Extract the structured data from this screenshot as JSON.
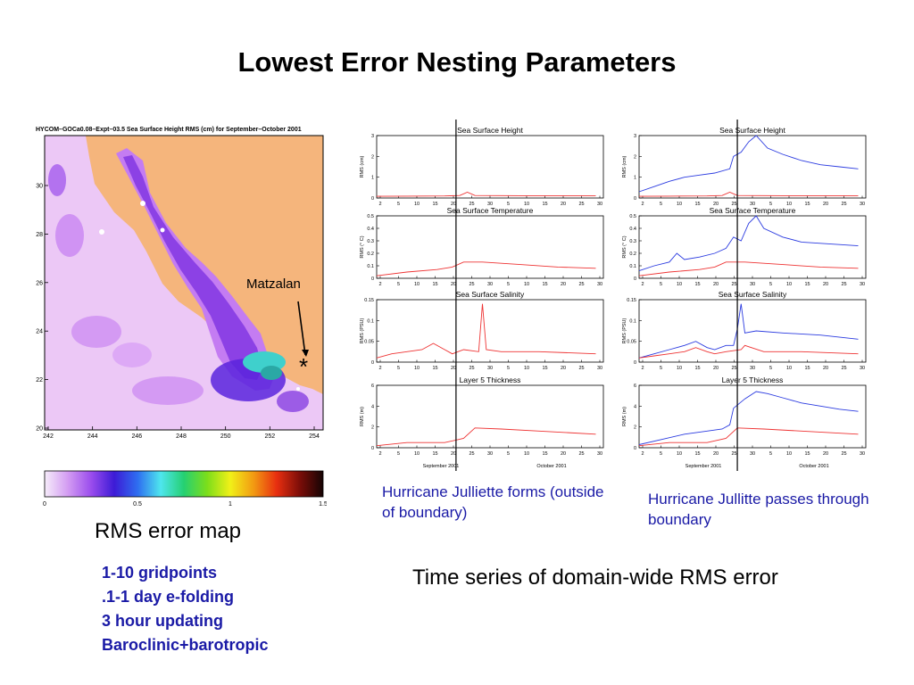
{
  "title": "Lowest Error Nesting Parameters",
  "map": {
    "header": "HYCOM–GOCa0.08–Expt–03.5   Sea Surface Height  RMS (cm)  for  September–October 2001",
    "location_label": "Matzalan",
    "marker": "*",
    "x_ticks": [
      "242",
      "244",
      "246",
      "248",
      "250",
      "252",
      "254"
    ],
    "y_ticks": [
      "30",
      "28",
      "26",
      "24",
      "22",
      "20"
    ],
    "colors": {
      "land": "#f5b57c",
      "ocean_low": "#ecc8f6",
      "ocean_mid": "#c47cf2",
      "ocean_high": "#7a2ee0",
      "ocean_peak": "#3fd0cc"
    }
  },
  "colorbar": {
    "ticks": [
      "0",
      "0.5",
      "1",
      "1.5"
    ],
    "colors": [
      "#f6ecfa",
      "#d39cf2",
      "#9b4ded",
      "#3d1bd6",
      "#2e6df0",
      "#4ee6ee",
      "#25d072",
      "#7cde1a",
      "#f1f018",
      "#f29a12",
      "#e82f10",
      "#7b0d08",
      "#150404"
    ]
  },
  "map_caption": "RMS error map",
  "bullets": [
    "1-10 gridpoints",
    ".1-1 day e-folding",
    "3 hour updating",
    "Baroclinic+barotropic"
  ],
  "left_caption": "Hurricane Julliette forms (outside of boundary)",
  "right_caption": "Hurricane Jullitte passes through boundary",
  "timeseries_caption": "Time series of domain-wide RMS error",
  "chart_data": [
    {
      "type": "line",
      "panels": [
        {
          "title": "Sea  Surface  Height",
          "ylabel": "RMS (cm)",
          "ylim": [
            0,
            3
          ],
          "yticks": [
            "0",
            "1",
            "2",
            "3"
          ]
        },
        {
          "title": "Sea  Surface  Temperature",
          "ylabel": "RMS (° C)",
          "ylim": [
            0,
            0.5
          ],
          "yticks": [
            "0",
            "0.1",
            "0.2",
            "0.3",
            "0.4",
            "0.5"
          ]
        },
        {
          "title": "Sea  Surface  Salinity",
          "ylabel": "RMS (PSU)",
          "ylim": [
            0,
            0.15
          ],
          "yticks": [
            "0",
            "0.05",
            "0.1",
            "0.15"
          ]
        },
        {
          "title": "Layer  5  Thickness",
          "ylabel": "RMS (m)",
          "ylim": [
            0,
            6
          ],
          "yticks": [
            "0",
            "2",
            "4",
            "6"
          ]
        }
      ],
      "x_tick_labels": [
        "2",
        "5",
        "10",
        "15",
        "20",
        "25",
        "30",
        "5",
        "10",
        "15",
        "20",
        "25",
        "30"
      ],
      "x_month_labels": [
        "September 2001",
        "October 2001"
      ],
      "marker_date": "Sep 23",
      "series": [
        {
          "color": "#ee3333",
          "panel_values": [
            [
              [
                2,
                0.08
              ],
              [
                10,
                0.09
              ],
              [
                20,
                0.1
              ],
              [
                24,
                0.12
              ],
              [
                26,
                0.28
              ],
              [
                28,
                0.12
              ],
              [
                40,
                0.11
              ],
              [
                60,
                0.11
              ]
            ],
            [
              [
                2,
                0.02
              ],
              [
                10,
                0.05
              ],
              [
                18,
                0.07
              ],
              [
                22,
                0.09
              ],
              [
                25,
                0.13
              ],
              [
                30,
                0.13
              ],
              [
                40,
                0.11
              ],
              [
                50,
                0.09
              ],
              [
                60,
                0.08
              ]
            ],
            [
              [
                2,
                0.01
              ],
              [
                6,
                0.02
              ],
              [
                10,
                0.025
              ],
              [
                14,
                0.03
              ],
              [
                17,
                0.045
              ],
              [
                20,
                0.03
              ],
              [
                22,
                0.02
              ],
              [
                25,
                0.03
              ],
              [
                29,
                0.025
              ],
              [
                30,
                0.14
              ],
              [
                31,
                0.03
              ],
              [
                35,
                0.025
              ],
              [
                45,
                0.025
              ],
              [
                60,
                0.02
              ]
            ],
            [
              [
                2,
                0.2
              ],
              [
                10,
                0.5
              ],
              [
                20,
                0.5
              ],
              [
                25,
                0.9
              ],
              [
                28,
                1.9
              ],
              [
                35,
                1.8
              ],
              [
                45,
                1.6
              ],
              [
                60,
                1.3
              ]
            ]
          ]
        }
      ]
    },
    {
      "type": "line",
      "panels": [
        {
          "title": "Sea  Surface  Height",
          "ylabel": "RMS (cm)",
          "ylim": [
            0,
            3
          ],
          "yticks": [
            "0",
            "1",
            "2",
            "3"
          ]
        },
        {
          "title": "Sea  Surface  Temperature",
          "ylabel": "RMS (° C)",
          "ylim": [
            0,
            0.5
          ],
          "yticks": [
            "0",
            "0.1",
            "0.2",
            "0.3",
            "0.4",
            "0.5"
          ]
        },
        {
          "title": "Sea  Surface  Salinity",
          "ylabel": "RMS (PSU)",
          "ylim": [
            0,
            0.15
          ],
          "yticks": [
            "0",
            "0.05",
            "0.1",
            "0.15"
          ]
        },
        {
          "title": "Layer  5  Thickness",
          "ylabel": "RMS (m)",
          "ylim": [
            0,
            6
          ],
          "yticks": [
            "0",
            "2",
            "4",
            "6"
          ]
        }
      ],
      "x_tick_labels": [
        "2",
        "5",
        "10",
        "15",
        "20",
        "25",
        "30",
        "5",
        "10",
        "15",
        "20",
        "25",
        "30"
      ],
      "x_month_labels": [
        "September 2001",
        "October 2001"
      ],
      "marker_date": "Sep 28",
      "series": [
        {
          "color": "#2b3be0",
          "panel_values": [
            [
              [
                2,
                0.3
              ],
              [
                6,
                0.55
              ],
              [
                10,
                0.8
              ],
              [
                14,
                1.0
              ],
              [
                18,
                1.1
              ],
              [
                22,
                1.2
              ],
              [
                26,
                1.4
              ],
              [
                27,
                2.0
              ],
              [
                29,
                2.2
              ],
              [
                31,
                2.7
              ],
              [
                33,
                3.0
              ],
              [
                36,
                2.4
              ],
              [
                40,
                2.1
              ],
              [
                45,
                1.8
              ],
              [
                50,
                1.6
              ],
              [
                55,
                1.5
              ],
              [
                60,
                1.4
              ]
            ],
            [
              [
                2,
                0.06
              ],
              [
                6,
                0.1
              ],
              [
                10,
                0.13
              ],
              [
                12,
                0.2
              ],
              [
                14,
                0.15
              ],
              [
                18,
                0.17
              ],
              [
                22,
                0.2
              ],
              [
                25,
                0.24
              ],
              [
                27,
                0.33
              ],
              [
                29,
                0.3
              ],
              [
                31,
                0.44
              ],
              [
                33,
                0.5
              ],
              [
                35,
                0.4
              ],
              [
                40,
                0.33
              ],
              [
                45,
                0.29
              ],
              [
                50,
                0.28
              ],
              [
                55,
                0.27
              ],
              [
                60,
                0.26
              ]
            ],
            [
              [
                2,
                0.01
              ],
              [
                6,
                0.02
              ],
              [
                10,
                0.03
              ],
              [
                14,
                0.04
              ],
              [
                17,
                0.05
              ],
              [
                20,
                0.035
              ],
              [
                22,
                0.03
              ],
              [
                25,
                0.04
              ],
              [
                27,
                0.04
              ],
              [
                28,
                0.08
              ],
              [
                29,
                0.14
              ],
              [
                30,
                0.07
              ],
              [
                33,
                0.075
              ],
              [
                40,
                0.07
              ],
              [
                50,
                0.065
              ],
              [
                60,
                0.055
              ]
            ],
            [
              [
                2,
                0.3
              ],
              [
                8,
                0.8
              ],
              [
                14,
                1.3
              ],
              [
                20,
                1.6
              ],
              [
                24,
                1.8
              ],
              [
                26,
                2.2
              ],
              [
                27,
                3.8
              ],
              [
                30,
                4.7
              ],
              [
                33,
                5.4
              ],
              [
                36,
                5.2
              ],
              [
                40,
                4.8
              ],
              [
                45,
                4.3
              ],
              [
                50,
                4.0
              ],
              [
                55,
                3.7
              ],
              [
                60,
                3.5
              ]
            ]
          ]
        },
        {
          "color": "#ee3333",
          "panel_values": [
            [
              [
                2,
                0.08
              ],
              [
                10,
                0.09
              ],
              [
                20,
                0.1
              ],
              [
                24,
                0.12
              ],
              [
                26,
                0.28
              ],
              [
                28,
                0.12
              ],
              [
                40,
                0.11
              ],
              [
                60,
                0.11
              ]
            ],
            [
              [
                2,
                0.02
              ],
              [
                10,
                0.05
              ],
              [
                18,
                0.07
              ],
              [
                22,
                0.09
              ],
              [
                25,
                0.13
              ],
              [
                30,
                0.13
              ],
              [
                40,
                0.11
              ],
              [
                50,
                0.09
              ],
              [
                60,
                0.08
              ]
            ],
            [
              [
                2,
                0.01
              ],
              [
                6,
                0.015
              ],
              [
                10,
                0.02
              ],
              [
                14,
                0.025
              ],
              [
                17,
                0.035
              ],
              [
                20,
                0.025
              ],
              [
                22,
                0.02
              ],
              [
                25,
                0.025
              ],
              [
                29,
                0.03
              ],
              [
                30,
                0.04
              ],
              [
                35,
                0.025
              ],
              [
                45,
                0.025
              ],
              [
                60,
                0.02
              ]
            ],
            [
              [
                2,
                0.2
              ],
              [
                10,
                0.5
              ],
              [
                20,
                0.5
              ],
              [
                25,
                0.9
              ],
              [
                28,
                1.9
              ],
              [
                35,
                1.8
              ],
              [
                45,
                1.6
              ],
              [
                60,
                1.3
              ]
            ]
          ]
        }
      ]
    }
  ]
}
